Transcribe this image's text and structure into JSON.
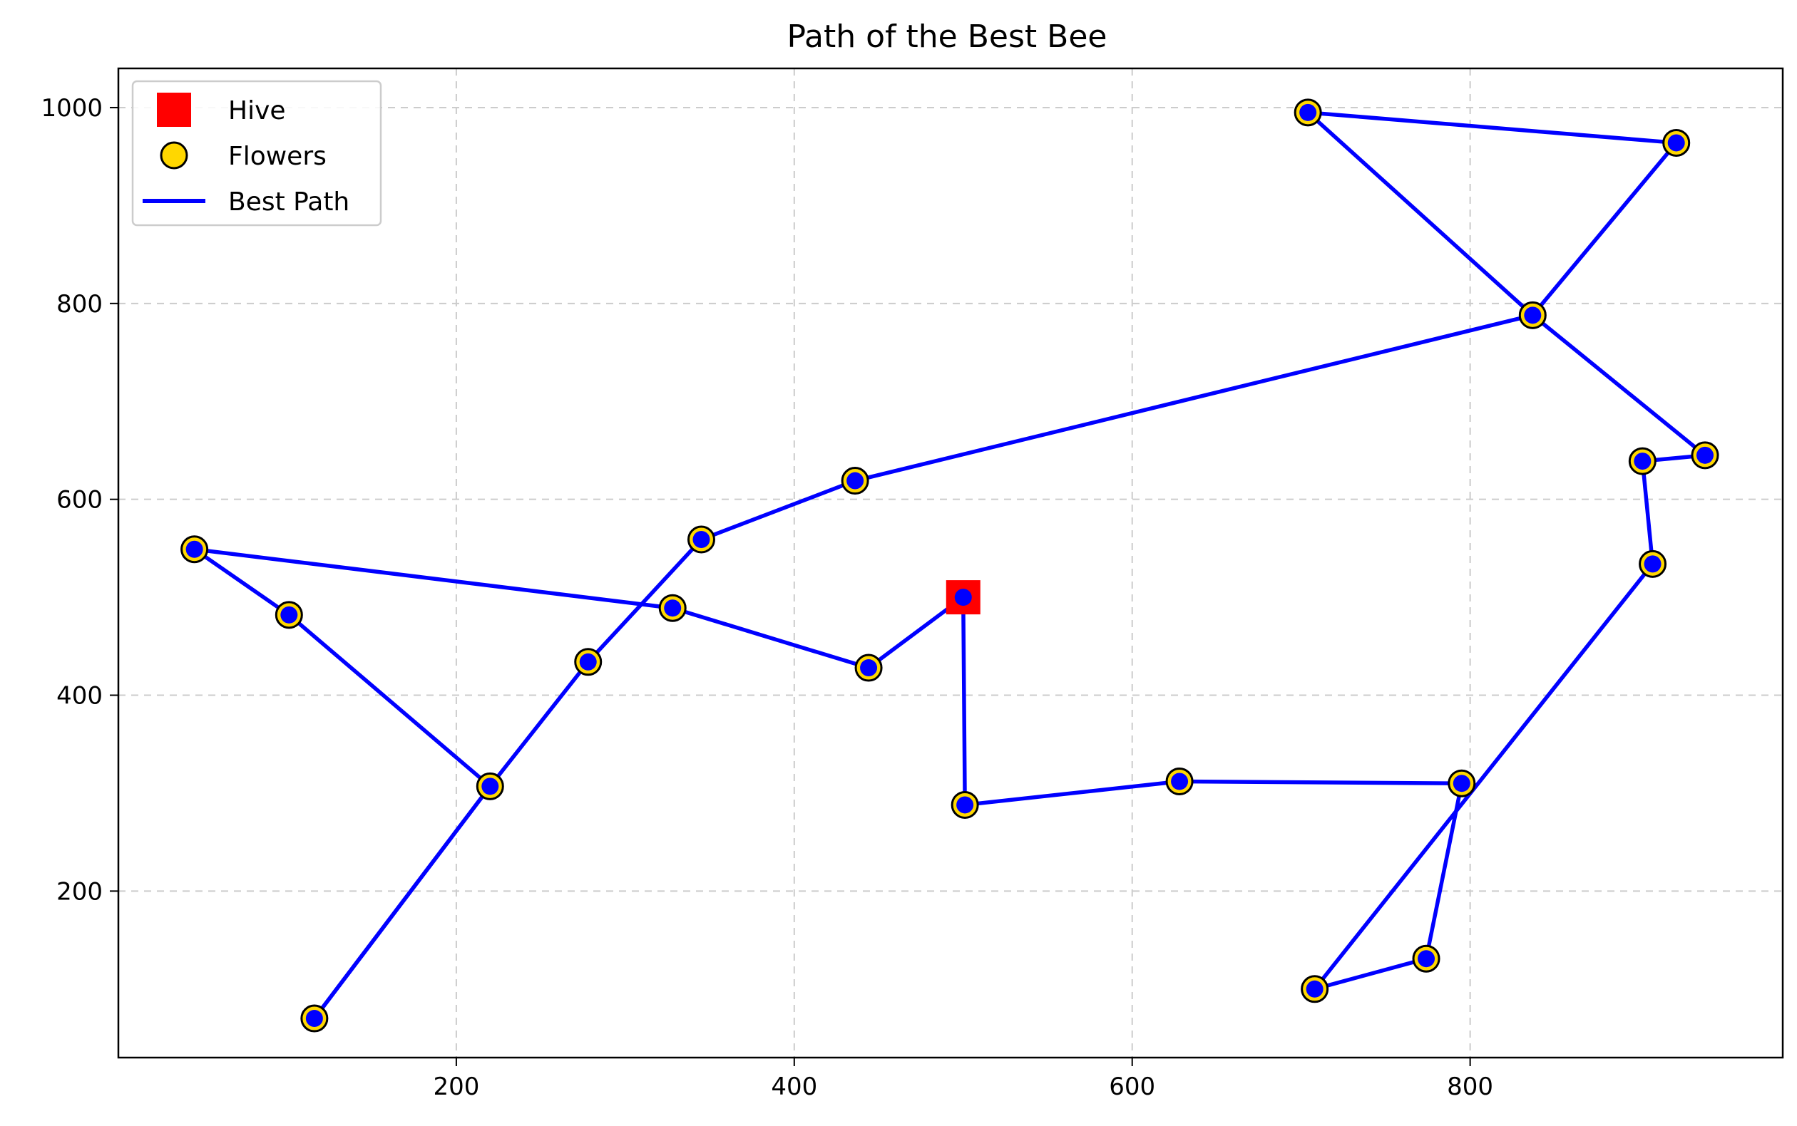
{
  "chart_data": {
    "type": "scatter",
    "title": "Path of the Best Bee",
    "xlabel": "",
    "ylabel": "",
    "xlim": [
      0,
      985
    ],
    "ylim": [
      30,
      1040
    ],
    "xticks": [
      200,
      400,
      600,
      800
    ],
    "yticks": [
      200,
      400,
      600,
      800,
      1000
    ],
    "grid": true,
    "legend_position": "top-left",
    "legend": [
      {
        "label": "Hive",
        "marker": "square",
        "color": "#ff0000"
      },
      {
        "label": "Flowers",
        "marker": "circle",
        "color": "#ffd700"
      },
      {
        "label": "Best Path",
        "marker": "line",
        "color": "#0000ff"
      }
    ],
    "hive": {
      "x": 500,
      "y": 500
    },
    "flowers": [
      {
        "x": 45,
        "y": 549
      },
      {
        "x": 101,
        "y": 482
      },
      {
        "x": 116,
        "y": 70
      },
      {
        "x": 220,
        "y": 307
      },
      {
        "x": 278,
        "y": 434
      },
      {
        "x": 328,
        "y": 489
      },
      {
        "x": 345,
        "y": 559
      },
      {
        "x": 436,
        "y": 619
      },
      {
        "x": 444,
        "y": 428
      },
      {
        "x": 501,
        "y": 288
      },
      {
        "x": 628,
        "y": 312
      },
      {
        "x": 704,
        "y": 995
      },
      {
        "x": 708,
        "y": 100
      },
      {
        "x": 774,
        "y": 131
      },
      {
        "x": 795,
        "y": 310
      },
      {
        "x": 837,
        "y": 788
      },
      {
        "x": 902,
        "y": 639
      },
      {
        "x": 908,
        "y": 534
      },
      {
        "x": 922,
        "y": 964
      },
      {
        "x": 939,
        "y": 645
      }
    ],
    "path": [
      {
        "x": 500,
        "y": 500
      },
      {
        "x": 501,
        "y": 288
      },
      {
        "x": 628,
        "y": 312
      },
      {
        "x": 795,
        "y": 310
      },
      {
        "x": 774,
        "y": 131
      },
      {
        "x": 708,
        "y": 100
      },
      {
        "x": 908,
        "y": 534
      },
      {
        "x": 902,
        "y": 639
      },
      {
        "x": 939,
        "y": 645
      },
      {
        "x": 837,
        "y": 788
      },
      {
        "x": 704,
        "y": 995
      },
      {
        "x": 922,
        "y": 964
      },
      {
        "x": 837,
        "y": 788
      },
      {
        "x": 436,
        "y": 619
      },
      {
        "x": 345,
        "y": 559
      },
      {
        "x": 278,
        "y": 434
      },
      {
        "x": 220,
        "y": 307
      },
      {
        "x": 116,
        "y": 70
      },
      {
        "x": 220,
        "y": 307
      },
      {
        "x": 101,
        "y": 482
      },
      {
        "x": 45,
        "y": 549
      },
      {
        "x": 328,
        "y": 489
      },
      {
        "x": 444,
        "y": 428
      },
      {
        "x": 500,
        "y": 500
      }
    ],
    "colors": {
      "path": "#0000ff",
      "flower_fill": "#ffd700",
      "flower_edge": "#000000",
      "hive": "#ff0000",
      "grid": "#cccccc"
    }
  }
}
